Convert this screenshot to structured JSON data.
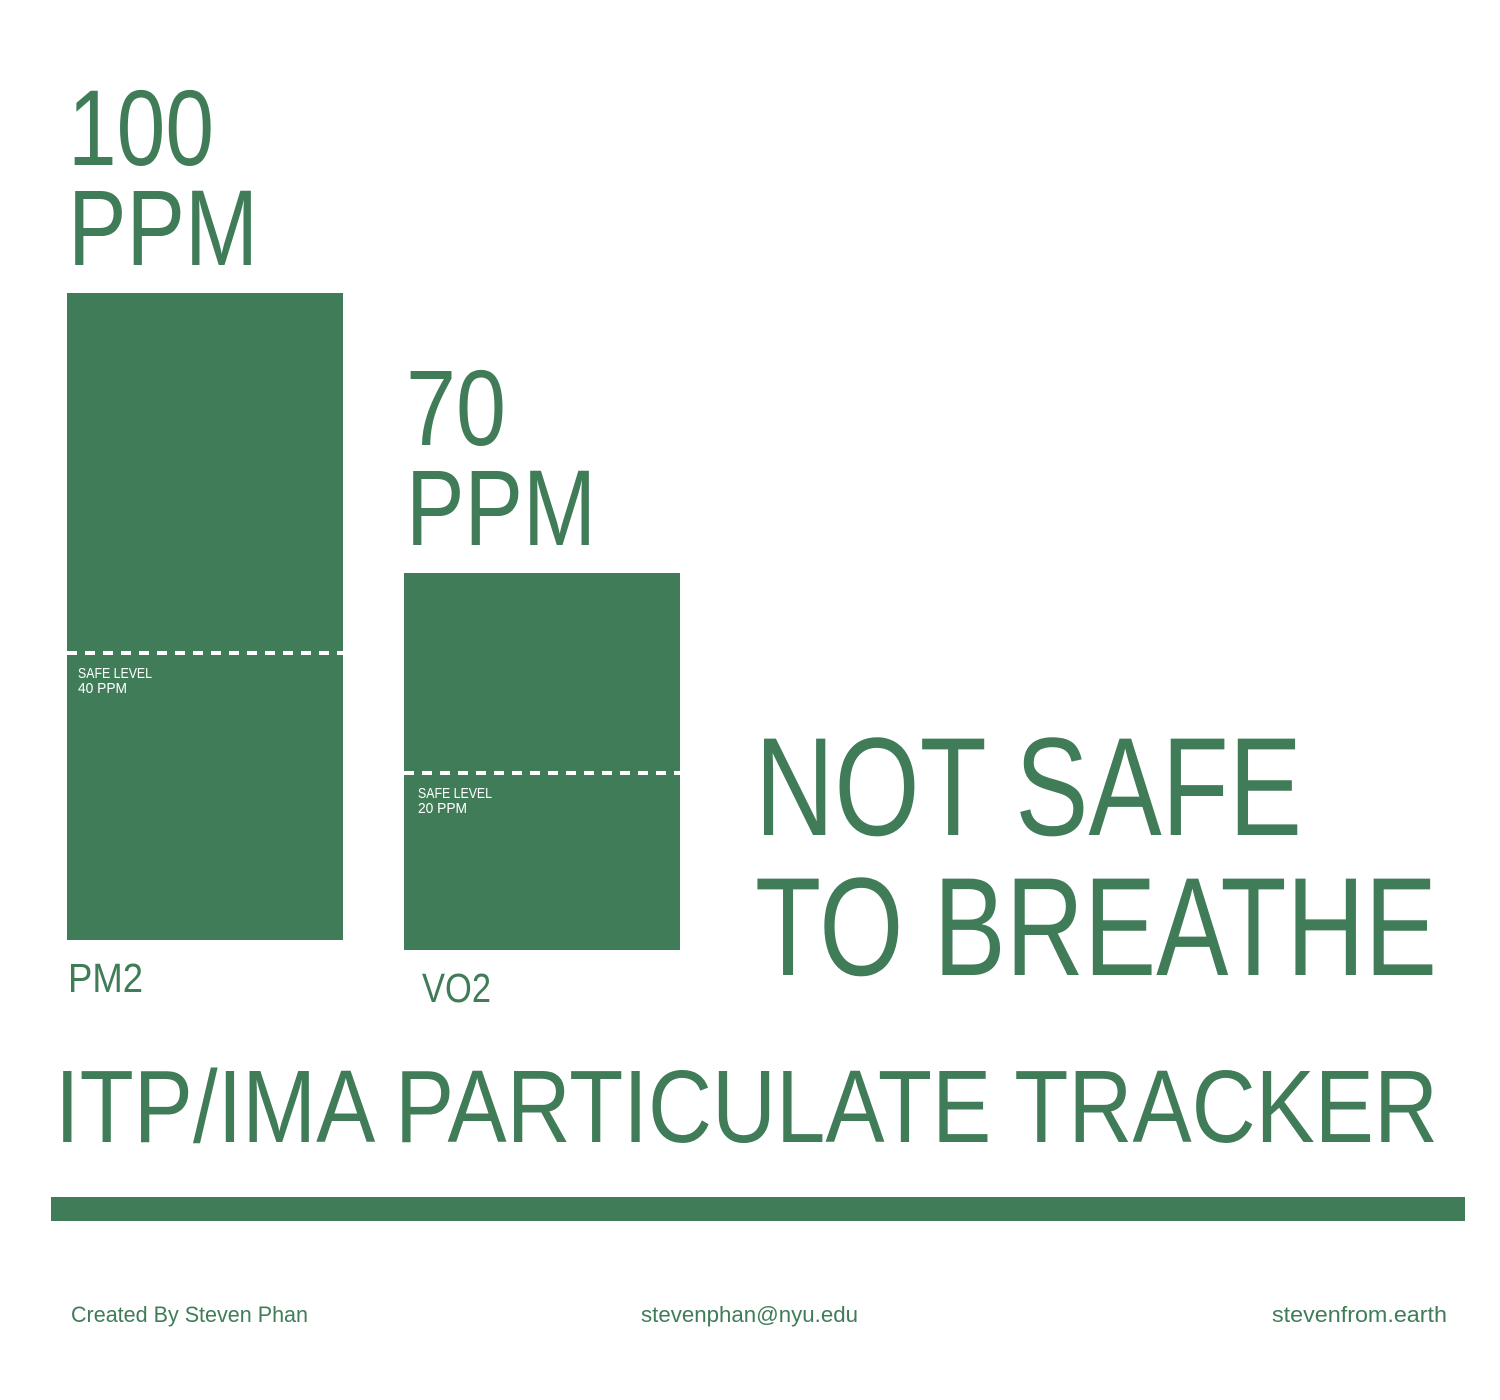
{
  "bars": [
    {
      "value": "100",
      "unit": "PPM",
      "label": "PM2",
      "safe_title": "SAFE LEVEL",
      "safe_value": "40 PPM"
    },
    {
      "value": "70",
      "unit": "PPM",
      "label": "VO2",
      "safe_title": "SAFE LEVEL",
      "safe_value": "20 PPM"
    }
  ],
  "status": {
    "line1": "NOT SAFE",
    "line2": "TO BREATHE"
  },
  "title": "ITP/IMA PARTICULATE TRACKER",
  "footer": {
    "credit": "Created By Steven Phan",
    "email": "stevenphan@nyu.edu",
    "site": "stevenfrom.earth"
  }
}
